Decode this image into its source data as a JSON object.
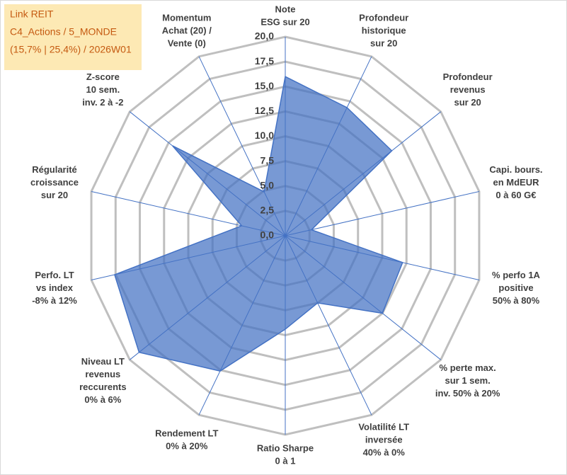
{
  "chart_data": {
    "type": "radar",
    "info": [
      "Link REIT",
      "C4_Actions / 5_MONDE",
      "(15,7% | 25,4%) / 2026W01"
    ],
    "categories": [
      [
        "Note",
        "ESG sur 20"
      ],
      [
        "Profondeur",
        "historique",
        "sur 20"
      ],
      [
        "Profondeur",
        "revenus",
        "sur 20"
      ],
      [
        "Capi. bours.",
        "en MdEUR",
        "0 à 60 G€"
      ],
      [
        "% perfo 1A",
        "positive",
        "50% à 80%"
      ],
      [
        "% perte max.",
        "sur 1 sem.",
        "inv. 50% à 20%"
      ],
      [
        "Volatilité LT",
        "inversée",
        "40% à 0%"
      ],
      [
        "Ratio Sharpe",
        "0 à 1"
      ],
      [
        "Rendement LT",
        "0% à 20%"
      ],
      [
        "Niveau LT",
        "revenus",
        "reccurents",
        "0% à 6%"
      ],
      [
        "Perfo. LT",
        "vs index",
        "-8% à 12%"
      ],
      [
        "Régularité",
        "croissance",
        "sur 20"
      ],
      [
        "Z-score",
        "10 sem.",
        "inv. 2 à -2"
      ],
      [
        "Momentum",
        "Achat (20) /",
        "Vente (0)"
      ]
    ],
    "values": [
      16,
      14.3,
      13.7,
      2.7,
      12.1,
      12.5,
      7.5,
      9.4,
      15.1,
      18.8,
      17.6,
      4.5,
      14.5,
      4.9
    ],
    "color": "#4472c4",
    "ylim": [
      0,
      20
    ],
    "yticks": [
      {
        "value": 0,
        "label": "0,0"
      },
      {
        "value": 2.5,
        "label": "2,5"
      },
      {
        "value": 5,
        "label": "5,0"
      },
      {
        "value": 7.5,
        "label": "7,5"
      },
      {
        "value": 10,
        "label": "10,0"
      },
      {
        "value": 12.5,
        "label": "12,5"
      },
      {
        "value": 15,
        "label": "15,0"
      },
      {
        "value": 17.5,
        "label": "17,5"
      },
      {
        "value": 20,
        "label": "20,0"
      }
    ],
    "grid": true
  }
}
